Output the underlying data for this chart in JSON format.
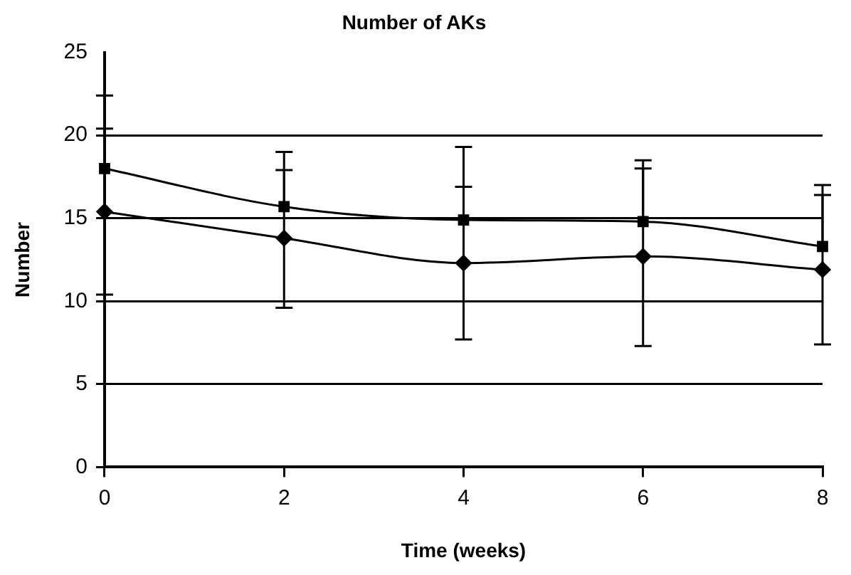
{
  "chart_data": {
    "type": "line",
    "title": "Number of AKs",
    "xlabel": "Time (weeks)",
    "ylabel": "Number",
    "x": [
      0,
      2,
      4,
      6,
      8
    ],
    "xlim": [
      0,
      8
    ],
    "xticks": [
      0,
      2,
      4,
      6,
      8
    ],
    "ylim": [
      0,
      25
    ],
    "yticks": [
      0,
      5,
      10,
      15,
      20,
      25
    ],
    "grid": "y",
    "legend": false,
    "line_style": "solid",
    "series": [
      {
        "color": "#000000",
        "marker": "square",
        "values": [
          18.0,
          15.7,
          14.9,
          14.8,
          13.3
        ],
        "errors": [
          [
            18.0,
            22.4
          ],
          [
            15.7,
            19.0
          ],
          [
            14.9,
            19.3
          ],
          [
            14.8,
            18.5
          ],
          [
            13.3,
            17.0
          ]
        ]
      },
      {
        "color": "#000000",
        "marker": "diamond",
        "values": [
          15.4,
          13.8,
          12.3,
          12.7,
          11.9
        ],
        "errors": [
          [
            10.4,
            20.4
          ],
          [
            9.6,
            17.9
          ],
          [
            7.7,
            16.9
          ],
          [
            7.3,
            18.0
          ],
          [
            7.4,
            16.4
          ]
        ]
      }
    ]
  }
}
